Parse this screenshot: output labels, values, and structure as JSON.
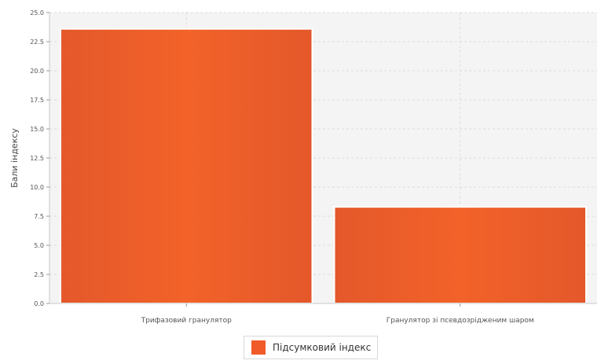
{
  "chart_data": {
    "type": "bar",
    "title": "",
    "xlabel": "",
    "ylabel": "Бали індексу",
    "ylim": [
      0,
      25
    ],
    "yticks": [
      "0.0",
      "2.5",
      "5.0",
      "7.5",
      "10.0",
      "12.5",
      "15.0",
      "17.5",
      "20.0",
      "22.5",
      "25.0"
    ],
    "categories": [
      "Трифазовий гранулятор",
      "Гранулятор зі псевдозрідженим шаром"
    ],
    "series": [
      {
        "name": "Підсумковий індекс",
        "values": [
          23.6,
          8.3
        ]
      }
    ],
    "grid": true,
    "legend_position": "bottom-center",
    "colors": {
      "bar": "#f15a29",
      "bar_edge": "#e4582a",
      "plot_bg": "#f4f4f4",
      "grid": "#dcdcdc"
    }
  }
}
